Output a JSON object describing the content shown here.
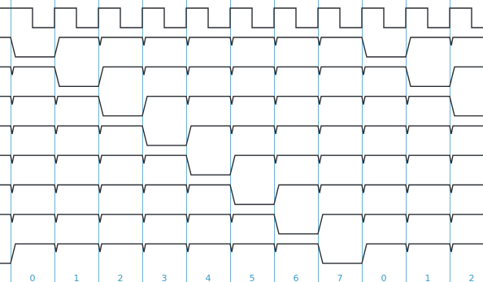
{
  "diagram": {
    "period_labels": [
      "0",
      "1",
      "2",
      "3",
      "4",
      "5",
      "6",
      "7",
      "0",
      "1",
      "2"
    ]
  }
}
